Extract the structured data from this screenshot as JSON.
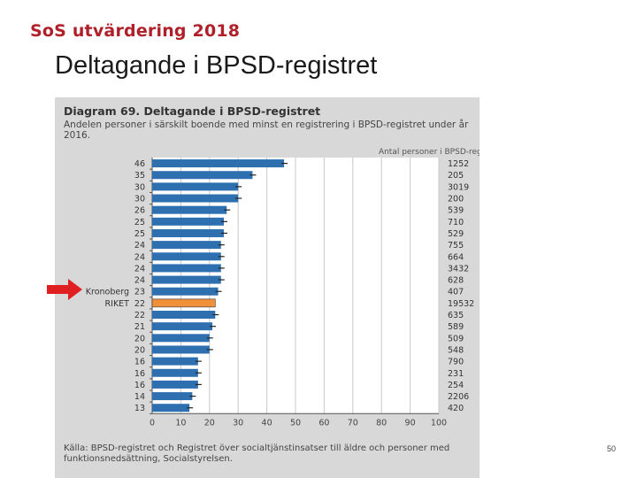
{
  "header": {
    "brand": "SoS utvärdering 2018",
    "slide_title": "Deltagande i BPSD-registret",
    "page_number": "50"
  },
  "chart_data": {
    "type": "bar",
    "orientation": "horizontal",
    "title": "Diagram 69. Deltagande i BPSD-registret",
    "subtitle": "Andelen personer i särskilt boende med minst en registrering i BPSD-registret under år 2016.",
    "right_column_header": "Antal personer i BPSD-registret",
    "source": "Källa: BPSD-registret och Registret över socialtjänstinsatser till äldre och personer med funktionsnedsättning, Socialstyrelsen.",
    "xlim": [
      0,
      100
    ],
    "x_ticks": [
      "0",
      "10",
      "20",
      "30",
      "40",
      "50",
      "60",
      "70",
      "80",
      "90",
      "100"
    ],
    "grid": true,
    "bar_color": "#2e6fb0",
    "highlight_color": "#f0913a",
    "rows": [
      {
        "label": "",
        "value_label": "46",
        "value": 46,
        "count": "1252"
      },
      {
        "label": "",
        "value_label": "35",
        "value": 35,
        "count": "205"
      },
      {
        "label": "",
        "value_label": "30",
        "value": 30,
        "count": "3019"
      },
      {
        "label": "",
        "value_label": "30",
        "value": 30,
        "count": "200"
      },
      {
        "label": "",
        "value_label": "26",
        "value": 26,
        "count": "539"
      },
      {
        "label": "",
        "value_label": "25",
        "value": 25,
        "count": "710"
      },
      {
        "label": "",
        "value_label": "25",
        "value": 25,
        "count": "529"
      },
      {
        "label": "",
        "value_label": "24",
        "value": 24,
        "count": "755"
      },
      {
        "label": "",
        "value_label": "24",
        "value": 24,
        "count": "664"
      },
      {
        "label": "",
        "value_label": "24",
        "value": 24,
        "count": "3432"
      },
      {
        "label": "",
        "value_label": "24",
        "value": 24,
        "count": "628"
      },
      {
        "label": "Kronoberg",
        "value_label": "23",
        "value": 23,
        "count": "407"
      },
      {
        "label": "RIKET",
        "value_label": "22",
        "value": 22,
        "count": "19532",
        "highlight": true
      },
      {
        "label": "",
        "value_label": "22",
        "value": 22,
        "count": "635"
      },
      {
        "label": "",
        "value_label": "21",
        "value": 21,
        "count": "589"
      },
      {
        "label": "",
        "value_label": "20",
        "value": 20,
        "count": "509"
      },
      {
        "label": "",
        "value_label": "20",
        "value": 20,
        "count": "548"
      },
      {
        "label": "",
        "value_label": "16",
        "value": 16,
        "count": "790"
      },
      {
        "label": "",
        "value_label": "16",
        "value": 16,
        "count": "231"
      },
      {
        "label": "",
        "value_label": "16",
        "value": 16,
        "count": "254"
      },
      {
        "label": "",
        "value_label": "14",
        "value": 14,
        "count": "2206"
      },
      {
        "label": "",
        "value_label": "13",
        "value": 13,
        "count": "420"
      }
    ]
  }
}
